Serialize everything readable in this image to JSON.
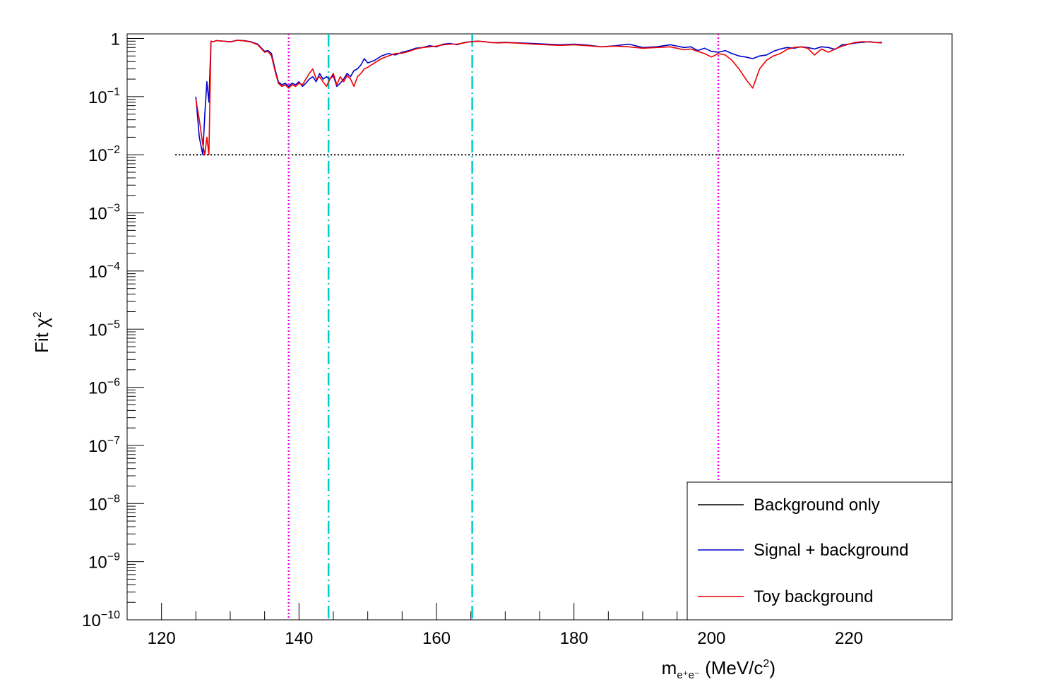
{
  "chart_data": {
    "type": "line",
    "title": "",
    "xlabel": "m_{e+e-} (MeV/c^2)",
    "xlabel_parts": {
      "m": "m",
      "sub": "e⁺e⁻",
      "rest": " (MeV/c",
      "sup": "2",
      "close": ")"
    },
    "ylabel_parts": {
      "fit": "Fit ",
      "chi": "χ",
      "sup": "2"
    },
    "xlim": [
      115,
      235
    ],
    "ylim": [
      1e-10,
      1.2
    ],
    "yscale": "log",
    "grid": false,
    "legend_position": "bottom-right",
    "x_ticks": [
      {
        "value": 120,
        "label": "120"
      },
      {
        "value": 140,
        "label": "140"
      },
      {
        "value": 160,
        "label": "160"
      },
      {
        "value": 180,
        "label": "180"
      },
      {
        "value": 200,
        "label": "200"
      },
      {
        "value": 220,
        "label": "220"
      }
    ],
    "y_ticks": [
      {
        "exp": 0,
        "label": "1",
        "sup": ""
      },
      {
        "exp": -1,
        "label": "10",
        "sup": "−1"
      },
      {
        "exp": -2,
        "label": "10",
        "sup": "−2"
      },
      {
        "exp": -3,
        "label": "10",
        "sup": "−3"
      },
      {
        "exp": -4,
        "label": "10",
        "sup": "−4"
      },
      {
        "exp": -5,
        "label": "10",
        "sup": "−5"
      },
      {
        "exp": -6,
        "label": "10",
        "sup": "−6"
      },
      {
        "exp": -7,
        "label": "10",
        "sup": "−7"
      },
      {
        "exp": -8,
        "label": "10",
        "sup": "−8"
      },
      {
        "exp": -9,
        "label": "10",
        "sup": "−9"
      },
      {
        "exp": -10,
        "label": "10",
        "sup": "−10"
      }
    ],
    "threshold_line": {
      "y": 0.01,
      "x_range": [
        122,
        228
      ],
      "color": "#000000",
      "style": "dotted"
    },
    "vertical_lines": [
      {
        "x": 138.5,
        "color": "#ee00ee",
        "style": "dotted"
      },
      {
        "x": 144.3,
        "color": "#00cccc",
        "style": "dashdot"
      },
      {
        "x": 165.2,
        "color": "#00cccc",
        "style": "dashdot"
      },
      {
        "x": 201.0,
        "color": "#ee00ee",
        "style": "dotted"
      }
    ],
    "series": [
      {
        "name": "Background only",
        "color": "#000000",
        "x": [],
        "y": []
      },
      {
        "name": "Signal + background",
        "color": "#0000cc",
        "x": [
          125.0,
          125.5,
          126.0,
          126.3,
          126.6,
          126.9,
          127.2,
          127.5,
          128,
          129,
          130,
          131,
          132,
          133,
          134,
          135,
          135.5,
          136,
          136.5,
          137,
          137.5,
          138,
          138.5,
          139,
          139.5,
          140,
          140.5,
          141,
          141.5,
          142,
          142.5,
          143,
          143.5,
          144,
          144.5,
          145,
          145.5,
          146,
          146.5,
          147,
          147.5,
          148,
          148.5,
          149,
          149.5,
          150,
          151,
          152,
          153,
          154,
          155,
          156,
          157,
          158,
          159,
          160,
          161,
          162,
          163,
          164,
          165,
          166,
          167,
          168,
          169,
          170,
          172,
          174,
          176,
          178,
          180,
          182,
          184,
          186,
          188,
          190,
          192,
          194,
          196,
          197,
          198,
          199,
          200,
          201,
          202,
          203,
          204,
          205,
          206,
          207,
          208,
          209,
          210,
          211,
          212,
          213,
          214,
          215,
          216,
          217,
          218,
          219,
          220,
          221,
          222,
          223,
          224,
          224.8
        ],
        "y": [
          0.1,
          0.02,
          0.01,
          0.05,
          0.18,
          0.08,
          0.9,
          0.88,
          0.92,
          0.9,
          0.88,
          0.93,
          0.92,
          0.88,
          0.8,
          0.6,
          0.62,
          0.55,
          0.3,
          0.18,
          0.16,
          0.17,
          0.15,
          0.17,
          0.16,
          0.18,
          0.15,
          0.17,
          0.2,
          0.22,
          0.18,
          0.25,
          0.2,
          0.22,
          0.2,
          0.23,
          0.15,
          0.17,
          0.2,
          0.25,
          0.22,
          0.28,
          0.3,
          0.35,
          0.45,
          0.38,
          0.42,
          0.5,
          0.55,
          0.52,
          0.58,
          0.62,
          0.68,
          0.7,
          0.75,
          0.72,
          0.8,
          0.82,
          0.78,
          0.85,
          0.88,
          0.9,
          0.88,
          0.85,
          0.85,
          0.86,
          0.84,
          0.82,
          0.8,
          0.78,
          0.8,
          0.77,
          0.72,
          0.75,
          0.8,
          0.7,
          0.72,
          0.78,
          0.7,
          0.72,
          0.62,
          0.68,
          0.6,
          0.58,
          0.62,
          0.55,
          0.5,
          0.48,
          0.45,
          0.5,
          0.52,
          0.6,
          0.66,
          0.7,
          0.68,
          0.72,
          0.7,
          0.66,
          0.72,
          0.7,
          0.65,
          0.78,
          0.8,
          0.84,
          0.86,
          0.88,
          0.85,
          0.86
        ]
      },
      {
        "name": "Toy background",
        "color": "#ee0000",
        "x": [
          125.0,
          125.5,
          126.0,
          126.3,
          126.6,
          126.9,
          127.2,
          127.5,
          128,
          129,
          130,
          131,
          132,
          133,
          134,
          135,
          135.5,
          136,
          136.5,
          137,
          137.5,
          138,
          138.5,
          139,
          139.5,
          140,
          140.5,
          141,
          141.5,
          142,
          142.5,
          143,
          143.5,
          144,
          144.5,
          145,
          145.5,
          146,
          146.5,
          147,
          147.5,
          148,
          148.5,
          149,
          149.5,
          150,
          151,
          152,
          153,
          154,
          155,
          156,
          157,
          158,
          159,
          160,
          161,
          162,
          163,
          164,
          165,
          166,
          167,
          168,
          169,
          170,
          172,
          174,
          176,
          178,
          180,
          182,
          184,
          186,
          188,
          190,
          192,
          194,
          196,
          197,
          198,
          199,
          200,
          201,
          202,
          203,
          204,
          205,
          206,
          207,
          208,
          209,
          210,
          211,
          212,
          213,
          214,
          215,
          216,
          217,
          218,
          219,
          220,
          221,
          222,
          223,
          224,
          224.8
        ],
        "y": [
          0.09,
          0.04,
          0.015,
          0.01,
          0.02,
          0.01,
          0.9,
          0.88,
          0.92,
          0.9,
          0.87,
          0.93,
          0.91,
          0.87,
          0.78,
          0.58,
          0.6,
          0.5,
          0.28,
          0.17,
          0.15,
          0.16,
          0.14,
          0.16,
          0.15,
          0.17,
          0.16,
          0.2,
          0.25,
          0.3,
          0.2,
          0.22,
          0.18,
          0.15,
          0.2,
          0.25,
          0.16,
          0.22,
          0.18,
          0.23,
          0.2,
          0.15,
          0.22,
          0.25,
          0.3,
          0.32,
          0.38,
          0.45,
          0.5,
          0.55,
          0.56,
          0.6,
          0.66,
          0.7,
          0.72,
          0.74,
          0.78,
          0.8,
          0.8,
          0.84,
          0.88,
          0.9,
          0.88,
          0.85,
          0.84,
          0.85,
          0.83,
          0.8,
          0.78,
          0.76,
          0.78,
          0.75,
          0.72,
          0.74,
          0.72,
          0.68,
          0.7,
          0.72,
          0.64,
          0.66,
          0.6,
          0.55,
          0.48,
          0.55,
          0.52,
          0.42,
          0.3,
          0.2,
          0.14,
          0.3,
          0.42,
          0.5,
          0.55,
          0.65,
          0.7,
          0.72,
          0.68,
          0.52,
          0.66,
          0.58,
          0.66,
          0.74,
          0.8,
          0.86,
          0.88,
          0.87,
          0.85,
          0.84
        ]
      }
    ]
  }
}
